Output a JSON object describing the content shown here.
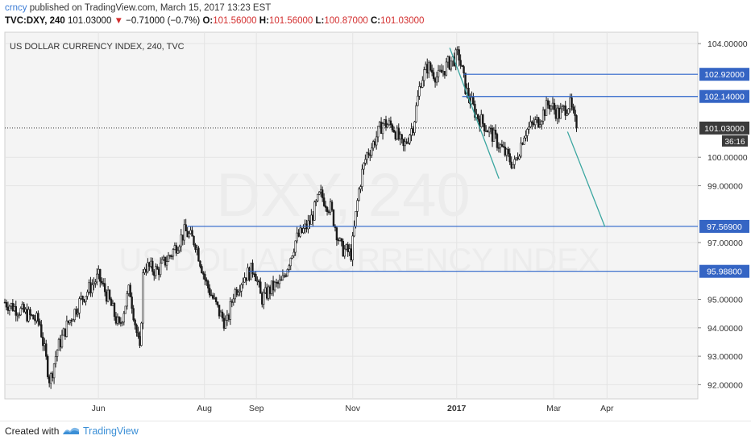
{
  "header": {
    "author": "crncy",
    "published": "published on TradingView.com, March 15, 2017 13:23 EST",
    "symbol": "TVC:DXY, 240",
    "last": "101.03000",
    "change": "−0.71000 (−0.7%)",
    "open_label": "O:",
    "open_value": "101.56000",
    "high_label": "H:",
    "high_value": "101.56000",
    "low_label": "L:",
    "low_value": "100.87000",
    "close_label": "C:",
    "close_value": "101.03000"
  },
  "footer": {
    "created_with": "Created with",
    "brand": "TradingView"
  },
  "colors": {
    "background": "#f4f4f4",
    "candles": "#1a1a1a",
    "hlines": "#2b63c9",
    "trend": "#3aa6a0",
    "price_tag": "#3565c4",
    "watermark": "#ececec"
  },
  "chart_data": {
    "type": "candlestick",
    "title": "US DOLLAR CURRENCY INDEX, 240, TVC",
    "watermark_line1": "DXY, 240",
    "watermark_line2": "US DOLLAR CURRENCY INDEX",
    "ylim": [
      91.5,
      104.4
    ],
    "y_ticks": [
      {
        "value": 92,
        "label": "92.00000"
      },
      {
        "value": 93,
        "label": "93.00000"
      },
      {
        "value": 94,
        "label": "94.00000"
      },
      {
        "value": 95,
        "label": "95.00000"
      },
      {
        "value": 97,
        "label": "97.00000"
      },
      {
        "value": 99,
        "label": "99.00000"
      },
      {
        "value": 100,
        "label": "100.00000"
      },
      {
        "value": 104,
        "label": "104.00000"
      }
    ],
    "x_ticks": [
      {
        "label": "Jun",
        "t": 0.135
      },
      {
        "label": "Aug",
        "t": 0.288
      },
      {
        "label": "Sep",
        "t": 0.363
      },
      {
        "label": "Nov",
        "t": 0.502
      },
      {
        "label": "2017",
        "t": 0.652,
        "bold": true
      },
      {
        "label": "Mar",
        "t": 0.792
      },
      {
        "label": "Apr",
        "t": 0.869
      }
    ],
    "series": [
      {
        "x": [
          0.0,
          0.03,
          0.05,
          0.065,
          0.075,
          0.09,
          0.11,
          0.135,
          0.15,
          0.165,
          0.18,
          0.195,
          0.2,
          0.22,
          0.24,
          0.26,
          0.275,
          0.29,
          0.31,
          0.32,
          0.33,
          0.345,
          0.36,
          0.37,
          0.385,
          0.4,
          0.42,
          0.44,
          0.455,
          0.47,
          0.485,
          0.5,
          0.51,
          0.515,
          0.522,
          0.53,
          0.545,
          0.56,
          0.575,
          0.59,
          0.6,
          0.61,
          0.625,
          0.64,
          0.655,
          0.665,
          0.68,
          0.7,
          0.72,
          0.735,
          0.75,
          0.77,
          0.785,
          0.8,
          0.815,
          0.825
        ],
        "close": [
          94.9,
          94.5,
          94.2,
          92.1,
          93.2,
          94.1,
          95.0,
          95.8,
          95.0,
          94.0,
          95.4,
          93.1,
          96.2,
          96.0,
          96.6,
          97.4,
          97.0,
          95.6,
          94.5,
          94.1,
          95.2,
          95.8,
          96.1,
          95.0,
          95.4,
          95.6,
          97.1,
          97.7,
          98.7,
          98.2,
          96.8,
          96.6,
          98.7,
          99.4,
          100.1,
          100.4,
          101.2,
          101.1,
          100.3,
          101.2,
          102.7,
          103.2,
          102.8,
          103.3,
          103.6,
          102.4,
          101.5,
          100.9,
          100.2,
          99.7,
          100.9,
          101.3,
          101.9,
          101.5,
          101.9,
          101.03
        ]
      }
    ],
    "hlines": [
      {
        "value": 102.92,
        "label": "102.92000",
        "x_start": 0.662
      },
      {
        "value": 102.14,
        "label": "102.14000",
        "x_start": 0.66
      },
      {
        "value": 97.569,
        "label": "97.56900",
        "x_start": 0.263
      },
      {
        "value": 95.988,
        "label": "95.98800",
        "x_start": 0.352
      }
    ],
    "last_price": {
      "value": 101.03,
      "label": "101.03000",
      "countdown": "36:16"
    },
    "trendlines": [
      {
        "from": {
          "t": 0.642,
          "v": 103.85
        },
        "to": {
          "t": 0.713,
          "v": 99.25
        }
      },
      {
        "from": {
          "t": 0.812,
          "v": 100.9
        },
        "to": {
          "t": 0.866,
          "v": 97.55
        }
      }
    ]
  }
}
